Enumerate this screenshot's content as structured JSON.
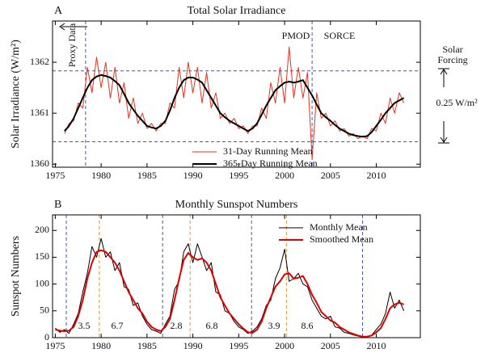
{
  "chart_data": [
    {
      "type": "line",
      "panel": "A",
      "title": "Total Solar Irradiance",
      "y_label": "Solar Irradiance (W/m²)",
      "xlim": [
        1974.7,
        2014.8
      ],
      "xticks": [
        1975,
        1980,
        1985,
        1990,
        1995,
        2000,
        2005,
        2010
      ],
      "ylim": [
        1359.94,
        1362.81
      ],
      "yticks": [
        1360,
        1361,
        1362
      ],
      "legend": "lower center",
      "x": [
        1976.0,
        1976.5,
        1977.0,
        1977.5,
        1978.0,
        1978.5,
        1979.0,
        1979.5,
        1980.0,
        1980.5,
        1981.0,
        1981.5,
        1982.0,
        1982.5,
        1983.0,
        1983.5,
        1984.0,
        1984.5,
        1985.0,
        1985.5,
        1986.0,
        1986.5,
        1987.0,
        1987.5,
        1988.0,
        1988.5,
        1989.0,
        1989.5,
        1990.0,
        1990.5,
        1991.0,
        1991.5,
        1992.0,
        1992.5,
        1993.0,
        1993.5,
        1994.0,
        1994.5,
        1995.0,
        1995.5,
        1996.0,
        1996.5,
        1997.0,
        1997.5,
        1998.0,
        1998.5,
        1999.0,
        1999.5,
        2000.0,
        2000.5,
        2001.0,
        2001.5,
        2002.0,
        2002.5,
        2003.0,
        2003.5,
        2004.0,
        2004.5,
        2005.0,
        2005.5,
        2006.0,
        2006.5,
        2007.0,
        2007.5,
        2008.0,
        2008.5,
        2009.0,
        2009.5,
        2010.0,
        2010.5,
        2011.0,
        2011.5,
        2012.0,
        2012.5,
        2013.0
      ],
      "series": [
        {
          "name": "31-Day Running Mean",
          "color": "#e8321e",
          "width": 1,
          "values": [
            1360.6,
            1360.8,
            1360.85,
            1361.2,
            1361.1,
            1361.9,
            1361.4,
            1362.1,
            1361.5,
            1362.0,
            1361.3,
            1361.9,
            1361.2,
            1361.6,
            1360.9,
            1361.3,
            1360.8,
            1361.0,
            1360.7,
            1360.8,
            1360.65,
            1360.8,
            1360.8,
            1361.2,
            1361.1,
            1361.9,
            1361.3,
            1362.0,
            1361.4,
            1361.9,
            1361.2,
            1361.8,
            1361.1,
            1361.4,
            1360.9,
            1361.0,
            1360.8,
            1360.9,
            1360.7,
            1360.75,
            1360.6,
            1360.75,
            1360.75,
            1361.1,
            1360.9,
            1361.6,
            1361.2,
            1361.9,
            1361.2,
            1362.3,
            1361.3,
            1361.9,
            1361.3,
            1361.8,
            1360.1,
            1361.4,
            1360.9,
            1361.0,
            1360.75,
            1360.85,
            1360.65,
            1360.7,
            1360.55,
            1360.6,
            1360.5,
            1360.55,
            1360.5,
            1360.7,
            1360.65,
            1361.0,
            1360.8,
            1361.3,
            1361.0,
            1361.4,
            1361.2
          ]
        },
        {
          "name": "365-Day Running Mean",
          "color": "#000000",
          "width": 2,
          "values": [
            1360.65,
            1360.75,
            1360.9,
            1361.1,
            1361.3,
            1361.5,
            1361.65,
            1361.72,
            1361.75,
            1361.73,
            1361.7,
            1361.63,
            1361.55,
            1361.38,
            1361.2,
            1361.07,
            1360.95,
            1360.85,
            1360.75,
            1360.72,
            1360.7,
            1360.75,
            1360.85,
            1361.05,
            1361.3,
            1361.5,
            1361.65,
            1361.7,
            1361.7,
            1361.66,
            1361.6,
            1361.45,
            1361.3,
            1361.15,
            1361.0,
            1360.92,
            1360.85,
            1360.8,
            1360.75,
            1360.7,
            1360.65,
            1360.7,
            1360.8,
            1360.97,
            1361.15,
            1361.3,
            1361.45,
            1361.53,
            1361.6,
            1361.62,
            1361.6,
            1361.62,
            1361.65,
            1361.5,
            1361.35,
            1361.17,
            1361.0,
            1360.92,
            1360.85,
            1360.77,
            1360.7,
            1360.65,
            1360.6,
            1360.57,
            1360.55,
            1360.54,
            1360.55,
            1360.63,
            1360.75,
            1360.87,
            1361.0,
            1361.1,
            1361.2,
            1361.25,
            1361.3
          ]
        }
      ],
      "reference_lines": [
        {
          "axis": "y",
          "values": [
            1361.83,
            1360.44
          ],
          "color": "#4455bb"
        },
        {
          "axis": "x",
          "values": [
            1978.3,
            2003.0
          ],
          "color": "#4455bb"
        }
      ],
      "annotations": [
        "Proxy Data",
        "PMOD",
        "SORCE",
        "Solar Forcing",
        "0.25 W/m²"
      ]
    },
    {
      "type": "line",
      "panel": "B",
      "title": "Monthly Sunspot Numbers",
      "y_label": "Sunspot Numbers",
      "xlim": [
        1974.7,
        2014.8
      ],
      "xticks": [
        1975,
        1980,
        1985,
        1990,
        1995,
        2000,
        2005,
        2010
      ],
      "ylim": [
        0,
        229
      ],
      "yticks": [
        0,
        50,
        100,
        150,
        200
      ],
      "legend": "upper right",
      "x": [
        1975.0,
        1975.5,
        1976.0,
        1976.5,
        1977.0,
        1977.5,
        1978.0,
        1978.5,
        1979.0,
        1979.5,
        1980.0,
        1980.5,
        1981.0,
        1981.5,
        1982.0,
        1982.5,
        1983.0,
        1983.5,
        1984.0,
        1984.5,
        1985.0,
        1985.5,
        1986.0,
        1986.5,
        1987.0,
        1987.5,
        1988.0,
        1988.5,
        1989.0,
        1989.5,
        1990.0,
        1990.5,
        1991.0,
        1991.5,
        1992.0,
        1992.5,
        1993.0,
        1993.5,
        1994.0,
        1994.5,
        1995.0,
        1995.5,
        1996.0,
        1996.5,
        1997.0,
        1997.5,
        1998.0,
        1998.5,
        1999.0,
        1999.5,
        2000.0,
        2000.5,
        2001.0,
        2001.5,
        2002.0,
        2002.5,
        2003.0,
        2003.5,
        2004.0,
        2004.5,
        2005.0,
        2005.5,
        2006.0,
        2006.5,
        2007.0,
        2007.5,
        2008.0,
        2008.5,
        2009.0,
        2009.5,
        2010.0,
        2010.5,
        2011.0,
        2011.5,
        2012.0,
        2012.5,
        2013.0
      ],
      "series": [
        {
          "name": "Monthly Mean",
          "color": "#000000",
          "width": 1,
          "values": [
            18,
            10,
            15,
            8,
            25,
            45,
            85,
            120,
            170,
            150,
            185,
            150,
            160,
            125,
            140,
            95,
            90,
            60,
            65,
            40,
            25,
            15,
            12,
            8,
            25,
            40,
            90,
            105,
            160,
            175,
            140,
            175,
            150,
            125,
            140,
            85,
            80,
            50,
            45,
            30,
            20,
            15,
            8,
            12,
            20,
            35,
            60,
            70,
            110,
            130,
            165,
            105,
            110,
            120,
            100,
            95,
            70,
            55,
            40,
            35,
            40,
            20,
            18,
            10,
            8,
            5,
            3,
            1,
            2,
            5,
            15,
            25,
            45,
            85,
            55,
            70,
            50
          ]
        },
        {
          "name": "Smoothed Mean",
          "color": "#e00000",
          "width": 2,
          "values": [
            15,
            13,
            12,
            13,
            20,
            40,
            70,
            110,
            140,
            160,
            163,
            160,
            150,
            140,
            125,
            105,
            85,
            70,
            55,
            45,
            30,
            20,
            15,
            12,
            20,
            35,
            70,
            110,
            145,
            158,
            150,
            145,
            148,
            140,
            125,
            100,
            75,
            60,
            45,
            35,
            25,
            17,
            10,
            9,
            15,
            30,
            55,
            75,
            95,
            105,
            118,
            120,
            110,
            112,
            115,
            100,
            80,
            65,
            48,
            40,
            32,
            28,
            20,
            15,
            10,
            7,
            4,
            2,
            2,
            4,
            10,
            18,
            35,
            55,
            62,
            65,
            62
          ]
        }
      ],
      "reference_lines": [
        {
          "axis": "x",
          "values": [
            1976.2,
            1986.7,
            1996.4,
            2008.5
          ],
          "color": "#4455bb"
        },
        {
          "axis": "x",
          "values": [
            1979.8,
            1989.7,
            2000.2
          ],
          "color": "#e8902a"
        }
      ],
      "annotations": [
        "3.5",
        "6.7",
        "2.8",
        "6.8",
        "3.9",
        "8.6"
      ]
    }
  ]
}
